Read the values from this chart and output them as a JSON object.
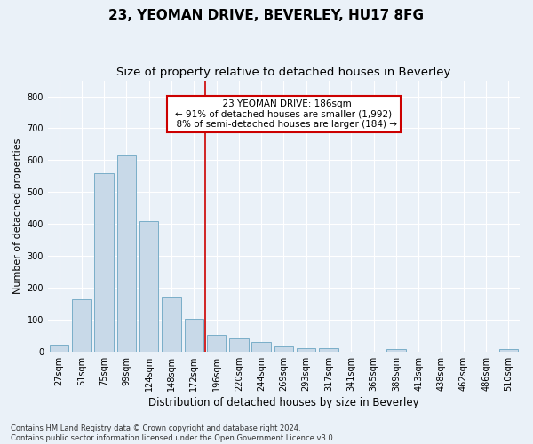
{
  "title": "23, YEOMAN DRIVE, BEVERLEY, HU17 8FG",
  "subtitle": "Size of property relative to detached houses in Beverley",
  "xlabel": "Distribution of detached houses by size in Beverley",
  "ylabel": "Number of detached properties",
  "bar_color": "#c8d9e8",
  "bar_edge_color": "#7aaec8",
  "categories": [
    "27sqm",
    "51sqm",
    "75sqm",
    "99sqm",
    "124sqm",
    "148sqm",
    "172sqm",
    "196sqm",
    "220sqm",
    "244sqm",
    "269sqm",
    "293sqm",
    "317sqm",
    "341sqm",
    "365sqm",
    "389sqm",
    "413sqm",
    "438sqm",
    "462sqm",
    "486sqm",
    "510sqm"
  ],
  "values": [
    18,
    165,
    560,
    615,
    410,
    170,
    103,
    52,
    40,
    30,
    15,
    12,
    10,
    0,
    0,
    8,
    0,
    0,
    0,
    0,
    8
  ],
  "ylim": [
    0,
    850
  ],
  "yticks": [
    0,
    100,
    200,
    300,
    400,
    500,
    600,
    700,
    800
  ],
  "vline_x_index": 7,
  "vline_color": "#cc0000",
  "annotation_text": "  23 YEOMAN DRIVE: 186sqm\n← 91% of detached houses are smaller (1,992)\n  8% of semi-detached houses are larger (184) →",
  "annotation_box_color": "#ffffff",
  "annotation_box_edge": "#cc0000",
  "footer_text": "Contains HM Land Registry data © Crown copyright and database right 2024.\nContains public sector information licensed under the Open Government Licence v3.0.",
  "background_color": "#eaf1f8",
  "grid_color": "#ffffff",
  "title_fontsize": 11,
  "subtitle_fontsize": 9.5,
  "xlabel_fontsize": 8.5,
  "ylabel_fontsize": 8,
  "tick_fontsize": 7,
  "annotation_fontsize": 7.5,
  "footer_fontsize": 6
}
